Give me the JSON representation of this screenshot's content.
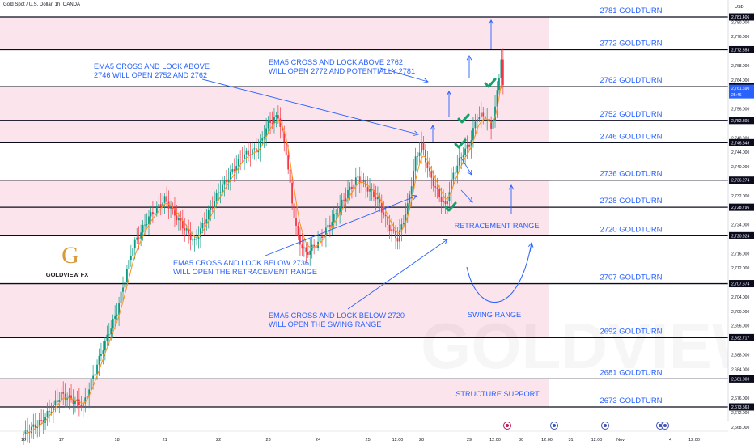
{
  "header": {
    "title": "Gold Spot / U.S. Dollar, 1h, OANDA",
    "currency": "USD"
  },
  "logo": {
    "letter": "G",
    "text": "GOLDVIEW FX",
    "color": "#d99a33"
  },
  "watermark": "GOLDVIEW FX",
  "colors": {
    "zone_fill": "#fce4ec",
    "level_line": "#0b0b1e",
    "blue_text": "#2962ff",
    "bull": "#089981",
    "bear": "#f23645",
    "ema": "#f7931a",
    "check": "#11a36a",
    "arrow": "#2962ff",
    "current_price_bg": "#2962ff"
  },
  "chart_data": {
    "type": "candlestick",
    "title": "Gold Spot / U.S. Dollar, 1h, OANDA",
    "ylim": [
      2666,
      2784
    ],
    "y_ticks": [
      {
        "v": 2780.0,
        "label": "2,780.000"
      },
      {
        "v": 2776.0,
        "label": "2,776.000"
      },
      {
        "v": 2768.0,
        "label": "2,768.000"
      },
      {
        "v": 2764.0,
        "label": "2,764.000"
      },
      {
        "v": 2756.0,
        "label": "2,756.000"
      },
      {
        "v": 2748.0,
        "label": "2,748.000"
      },
      {
        "v": 2744.0,
        "label": "2,744.000"
      },
      {
        "v": 2740.0,
        "label": "2,740.000"
      },
      {
        "v": 2732.0,
        "label": "2,732.000"
      },
      {
        "v": 2724.0,
        "label": "2,724.000"
      },
      {
        "v": 2716.0,
        "label": "2,716.000"
      },
      {
        "v": 2712.0,
        "label": "2,712.000"
      },
      {
        "v": 2704.0,
        "label": "2,704.000"
      },
      {
        "v": 2700.0,
        "label": "2,700.000"
      },
      {
        "v": 2696.0,
        "label": "2,696.000"
      },
      {
        "v": 2688.0,
        "label": "2,688.000"
      },
      {
        "v": 2684.0,
        "label": "2,684.000"
      },
      {
        "v": 2676.0,
        "label": "2,676.000"
      },
      {
        "v": 2672.0,
        "label": "2,672.000"
      },
      {
        "v": 2668.0,
        "label": "2,668.000"
      }
    ],
    "price_tags": [
      {
        "v": 2781.406,
        "label": "2,781.406",
        "style": "dark"
      },
      {
        "v": 2772.353,
        "label": "2,772.353",
        "style": "dark"
      },
      {
        "v": 2762.12,
        "label": "2,762.120",
        "style": "dark"
      },
      {
        "v": 2752.805,
        "label": "2,752.805",
        "style": "dark"
      },
      {
        "v": 2746.649,
        "label": "2,746.649",
        "style": "dark"
      },
      {
        "v": 2736.274,
        "label": "2,736.274",
        "style": "dark"
      },
      {
        "v": 2728.796,
        "label": "2,728.796",
        "style": "dark"
      },
      {
        "v": 2720.924,
        "label": "2,720.924",
        "style": "dark"
      },
      {
        "v": 2707.674,
        "label": "2,707.674",
        "style": "dark"
      },
      {
        "v": 2692.717,
        "label": "2,692.717",
        "style": "dark"
      },
      {
        "v": 2681.303,
        "label": "2,681.303",
        "style": "dark"
      },
      {
        "v": 2673.563,
        "label": "2,673.563",
        "style": "dark"
      }
    ],
    "current_price": {
      "v": 2761.69,
      "label": "2,761.690",
      "countdown": "25:46"
    },
    "x_ticks": [
      {
        "i": 0,
        "label": "16"
      },
      {
        "i": 19,
        "label": "17"
      },
      {
        "i": 47,
        "label": "18"
      },
      {
        "i": 71,
        "label": "21"
      },
      {
        "i": 98,
        "label": "22"
      },
      {
        "i": 123,
        "label": "23"
      },
      {
        "i": 148,
        "label": "24"
      },
      {
        "i": 173,
        "label": "25"
      },
      {
        "i": 188,
        "label": "12:00"
      },
      {
        "i": 200,
        "label": "28"
      },
      {
        "i": 224,
        "label": "29"
      },
      {
        "i": 237,
        "label": "12:00"
      },
      {
        "i": 250,
        "label": "30"
      },
      {
        "i": 263,
        "label": "12:00"
      },
      {
        "i": 275,
        "label": "31"
      },
      {
        "i": 288,
        "label": "12:00"
      },
      {
        "i": 300,
        "label": "Nov"
      },
      {
        "i": 325,
        "label": "4"
      },
      {
        "i": 337,
        "label": "12:00"
      }
    ],
    "levels": [
      {
        "price": 2781.406,
        "label": "2781 GOLDTURN"
      },
      {
        "price": 2772.353,
        "label": "2772 GOLDTURN"
      },
      {
        "price": 2762.12,
        "label": "2762 GOLDTURN"
      },
      {
        "price": 2752.805,
        "label": "2752 GOLDTURN"
      },
      {
        "price": 2746.649,
        "label": "2746 GOLDTURN"
      },
      {
        "price": 2736.274,
        "label": "2736 GOLDTURN"
      },
      {
        "price": 2728.796,
        "label": "2728 GOLDTURN"
      },
      {
        "price": 2720.924,
        "label": "2720 GOLDTURN"
      },
      {
        "price": 2707.674,
        "label": "2707 GOLDTURN"
      },
      {
        "price": 2692.717,
        "label": "2692 GOLDTURN"
      },
      {
        "price": 2681.303,
        "label": "2681 GOLDTURN"
      },
      {
        "price": 2673.563,
        "label": "2673 GOLDTURN"
      }
    ],
    "zones": [
      [
        2772.353,
        2781.406
      ],
      [
        2746.649,
        2762.12
      ],
      [
        2720.924,
        2736.274
      ],
      [
        2692.717,
        2707.674
      ],
      [
        2673.563,
        2681.303
      ]
    ],
    "annotations": [
      {
        "line1": "EMA5 CROSS AND LOCK ABOVE",
        "line2": "2746 WILL OPEN 2752 AND 2762"
      },
      {
        "line1": "EMA5 CROSS AND LOCK ABOVE 2762",
        "line2": "WILL OPEN 2772 AND POTENTIALLY 2781"
      },
      {
        "line1": "EMA5 CROSS AND LOCK BELOW 2736",
        "line2": "WILL OPEN THE RETRACEMENT RANGE"
      },
      {
        "line1": "EMA5 CROSS AND LOCK BELOW 2720",
        "line2": "WILL OPEN THE SWING RANGE"
      }
    ],
    "range_labels": {
      "retracement": "RETRACEMENT RANGE",
      "swing": "SWING RANGE",
      "structure": "STRUCTURE SUPPORT"
    },
    "anchors": [
      {
        "i": 0,
        "p": 2666
      },
      {
        "i": 10,
        "p": 2670
      },
      {
        "i": 19,
        "p": 2677
      },
      {
        "i": 30,
        "p": 2674
      },
      {
        "i": 40,
        "p": 2690
      },
      {
        "i": 47,
        "p": 2700
      },
      {
        "i": 55,
        "p": 2718
      },
      {
        "i": 63,
        "p": 2726
      },
      {
        "i": 71,
        "p": 2731
      },
      {
        "i": 77,
        "p": 2726
      },
      {
        "i": 86,
        "p": 2719
      },
      {
        "i": 98,
        "p": 2733
      },
      {
        "i": 110,
        "p": 2743
      },
      {
        "i": 118,
        "p": 2745
      },
      {
        "i": 123,
        "p": 2752
      },
      {
        "i": 128,
        "p": 2754
      },
      {
        "i": 132,
        "p": 2744
      },
      {
        "i": 135,
        "p": 2730
      },
      {
        "i": 138,
        "p": 2720
      },
      {
        "i": 142,
        "p": 2716
      },
      {
        "i": 148,
        "p": 2719
      },
      {
        "i": 156,
        "p": 2726
      },
      {
        "i": 163,
        "p": 2733
      },
      {
        "i": 168,
        "p": 2737
      },
      {
        "i": 173,
        "p": 2734
      },
      {
        "i": 178,
        "p": 2731
      },
      {
        "i": 183,
        "p": 2724
      },
      {
        "i": 188,
        "p": 2720
      },
      {
        "i": 193,
        "p": 2729
      },
      {
        "i": 197,
        "p": 2742
      },
      {
        "i": 200,
        "p": 2746
      },
      {
        "i": 204,
        "p": 2738
      },
      {
        "i": 208,
        "p": 2733
      },
      {
        "i": 212,
        "p": 2729
      },
      {
        "i": 216,
        "p": 2738
      },
      {
        "i": 221,
        "p": 2744
      },
      {
        "i": 224,
        "p": 2746
      },
      {
        "i": 228,
        "p": 2754
      },
      {
        "i": 232,
        "p": 2754
      },
      {
        "i": 235,
        "p": 2751
      },
      {
        "i": 237,
        "p": 2756
      },
      {
        "i": 240,
        "p": 2770
      },
      {
        "i": 241,
        "p": 2761.69
      }
    ]
  }
}
